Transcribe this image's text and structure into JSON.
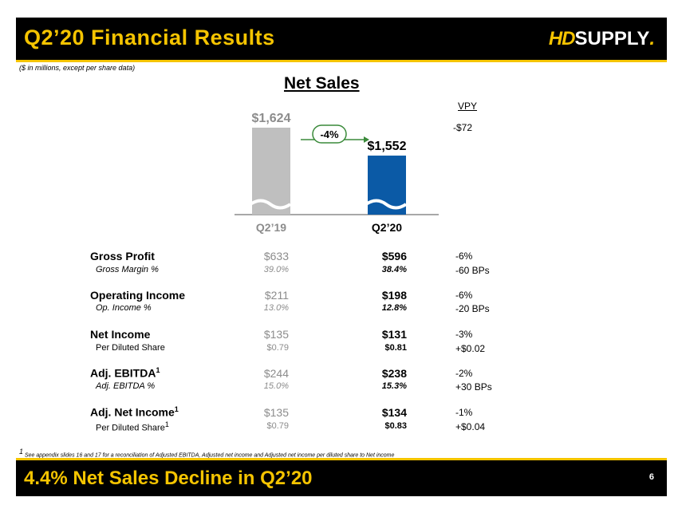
{
  "header": {
    "title": "Q2’20 Financial Results",
    "logo_hd": "HD",
    "logo_supply": "SUPPLY",
    "logo_mark": "."
  },
  "subnote": "($ in millions, except per share data)",
  "chart_data": {
    "type": "bar",
    "title": "Net Sales",
    "categories": [
      "Q2’19",
      "Q2’20"
    ],
    "values": [
      1624,
      1552
    ],
    "data_labels": [
      "$1,624",
      "$1,552"
    ],
    "colors": [
      "#bfbfbf",
      "#0b5aa6"
    ],
    "change_label": "-4%",
    "axis_break": true
  },
  "vpy": {
    "header": "VPY",
    "net_sales": "-$72"
  },
  "rows": {
    "gross_profit": {
      "label": "Gross Profit",
      "q219": "$633",
      "q220": "$596",
      "vpy": "-6%"
    },
    "gross_margin": {
      "label": "Gross Margin %",
      "q219": "39.0%",
      "q220": "38.4%",
      "vpy": "-60 BPs"
    },
    "operating_income": {
      "label": "Operating Income",
      "q219": "$211",
      "q220": "$198",
      "vpy": "-6%"
    },
    "op_income_pct": {
      "label": "Op. Income %",
      "q219": "13.0%",
      "q220": "12.8%",
      "vpy": "-20 BPs"
    },
    "net_income": {
      "label": "Net Income",
      "q219": "$135",
      "q220": "$131",
      "vpy": "-3%"
    },
    "per_diluted_share": {
      "label": "Per Diluted Share",
      "q219": "$0.79",
      "q220": "$0.81",
      "vpy": "+$0.02"
    },
    "adj_ebitda": {
      "label": "Adj.  EBITDA",
      "sup": "1",
      "q219": "$244",
      "q220": "$238",
      "vpy": "-2%"
    },
    "adj_ebitda_pct": {
      "label": "Adj. EBITDA %",
      "q219": "15.0%",
      "q220": "15.3%",
      "vpy": "+30 BPs"
    },
    "adj_net_income": {
      "label": "Adj.  Net Income",
      "sup": "1",
      "q219": "$135",
      "q220": "$134",
      "vpy": "-1%"
    },
    "adj_per_diluted_share": {
      "label": "Per Diluted Share",
      "sup": "1",
      "q219": "$0.79",
      "q220": "$0.83",
      "vpy": "+$0.04"
    }
  },
  "footnote": {
    "mark": "1",
    "text": " See appendix slides 16 and 17 for a reconciliation of Adjusted EBITDA, Adjusted net income  and Adjusted net income  per diluted share to Net income"
  },
  "footer": {
    "headline": "4.4% Net Sales Decline in Q2’20",
    "page_number": "6"
  }
}
